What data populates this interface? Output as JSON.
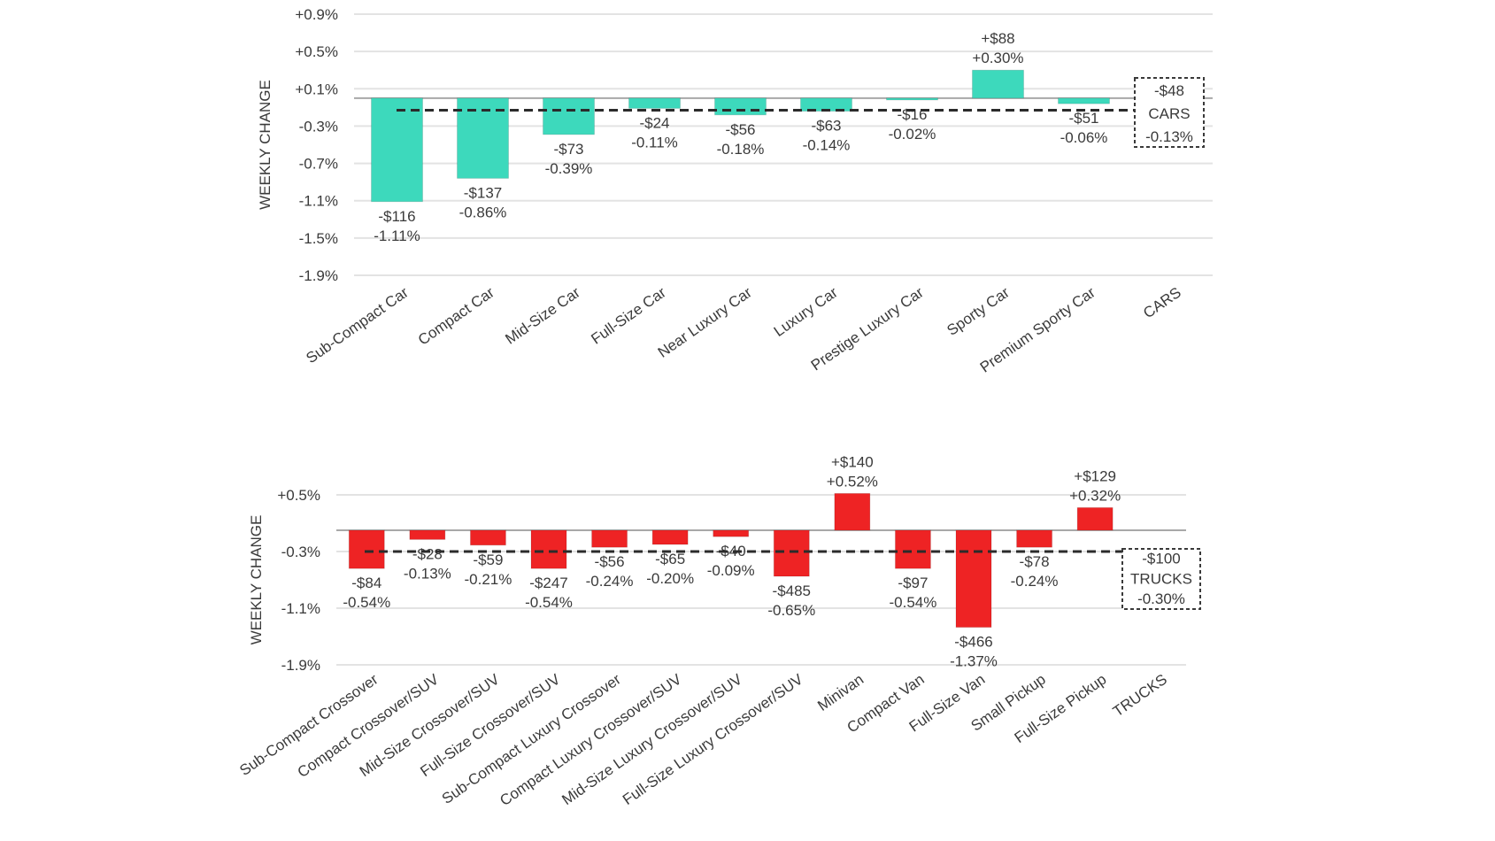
{
  "chart_data": [
    {
      "type": "bar",
      "id": "cars",
      "ylabel": "WEEKLY CHANGE",
      "ylim": [
        -1.9,
        0.9
      ],
      "ytick_values": [
        0.9,
        0.5,
        0.1,
        -0.3,
        -0.7,
        -1.1,
        -1.5,
        -1.9
      ],
      "ytick_labels": [
        "+0.9%",
        "+0.5%",
        "+0.1%",
        "-0.3%",
        "-0.7%",
        "-1.1%",
        "-1.5%",
        "-1.9%"
      ],
      "grid": true,
      "bar_color": "#3dd9bc",
      "categories": [
        "Sub-Compact Car",
        "Compact Car",
        "Mid-Size Car",
        "Full-Size Car",
        "Near Luxury Car",
        "Luxury Car",
        "Prestige Luxury Car",
        "Sporty Car",
        "Premium Sporty Car",
        "CARS"
      ],
      "values_pct": [
        -1.11,
        -0.86,
        -0.39,
        -0.11,
        -0.18,
        -0.14,
        -0.02,
        0.3,
        -0.06,
        null
      ],
      "dollar_labels": [
        "-$116",
        "-$137",
        "-$73",
        "-$24",
        "-$56",
        "-$63",
        "-$16",
        "+$88",
        "-$51"
      ],
      "pct_labels": [
        "-1.11%",
        "-0.86%",
        "-0.39%",
        "-0.11%",
        "-0.18%",
        "-0.14%",
        "-0.02%",
        "+0.30%",
        "-0.06%"
      ],
      "average": {
        "label": "CARS",
        "value_pct": -0.13,
        "dollar_label": "-$48",
        "pct_label": "-0.13%"
      }
    },
    {
      "type": "bar",
      "id": "trucks",
      "ylabel": "WEEKLY CHANGE",
      "ylim": [
        -1.9,
        0.5
      ],
      "ytick_values": [
        0.5,
        -0.3,
        -1.1,
        -1.9
      ],
      "ytick_labels": [
        "+0.5%",
        "-0.3%",
        "-1.1%",
        "-1.9%"
      ],
      "grid": true,
      "bar_color": "#ee2324",
      "categories": [
        "Sub-Compact Crossover",
        "Compact Crossover/SUV",
        "Mid-Size Crossover/SUV",
        "Full-Size Crossover/SUV",
        "Sub-Compact Luxury Crossover",
        "Compact Luxury Crossover/SUV",
        "Mid-Size Luxury Crossover/SUV",
        "Full-Size Luxury Crossover/SUV",
        "Minivan",
        "Compact Van",
        "Full-Size Van",
        "Small Pickup",
        "Full-Size Pickup",
        "TRUCKS"
      ],
      "values_pct": [
        -0.54,
        -0.13,
        -0.21,
        -0.54,
        -0.24,
        -0.2,
        -0.09,
        -0.65,
        0.52,
        -0.54,
        -1.37,
        -0.24,
        0.32,
        null
      ],
      "dollar_labels": [
        "-$84",
        "-$28",
        "-$59",
        "-$247",
        "-$56",
        "-$65",
        "-$40",
        "-$485",
        "+$140",
        "-$97",
        "-$466",
        "-$78",
        "+$129"
      ],
      "pct_labels": [
        "-0.54%",
        "-0.13%",
        "-0.21%",
        "-0.54%",
        "-0.24%",
        "-0.20%",
        "-0.09%",
        "-0.65%",
        "+0.52%",
        "-0.54%",
        "-1.37%",
        "-0.24%",
        "+0.32%"
      ],
      "average": {
        "label": "TRUCKS",
        "value_pct": -0.3,
        "dollar_label": "-$100",
        "pct_label": "-0.30%"
      }
    }
  ]
}
